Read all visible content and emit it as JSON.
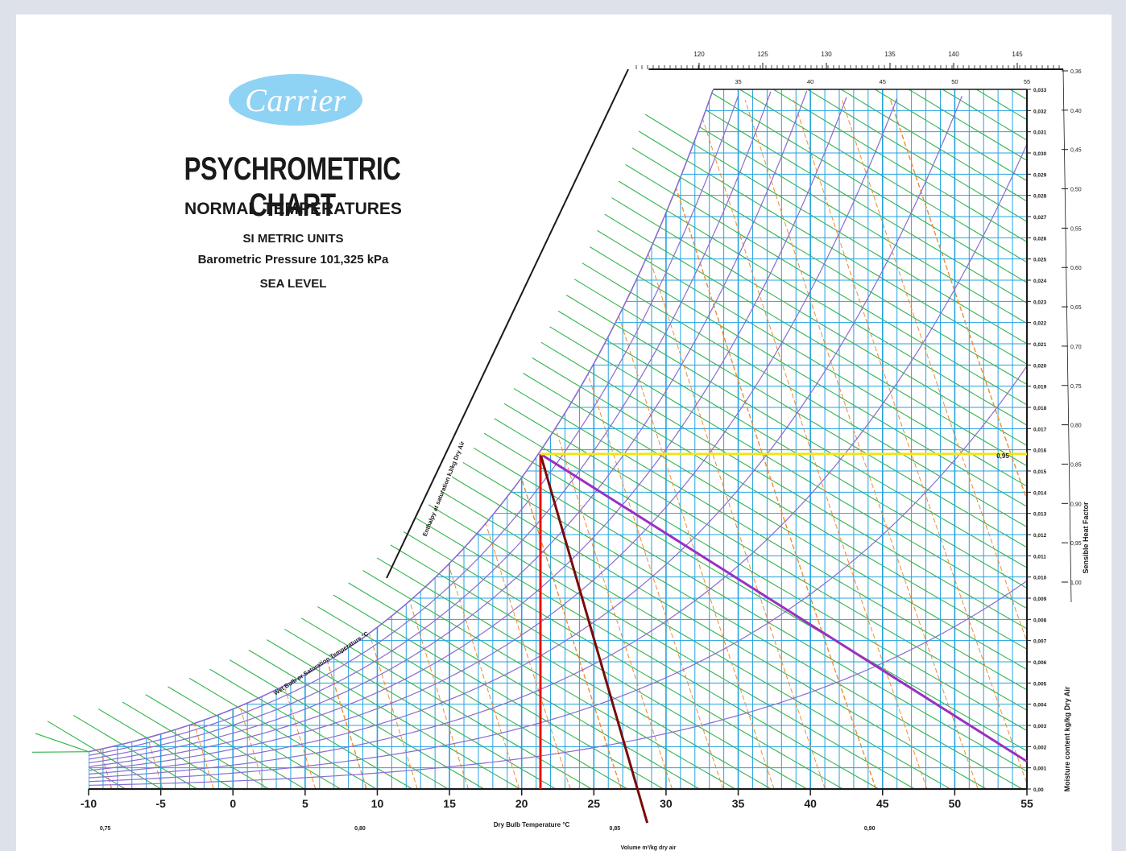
{
  "logo": {
    "text": "Carrier"
  },
  "header": {
    "title": "PSYCHROMETRIC CHART",
    "subtitle": "NORMAL TEMPERATURES",
    "units": "SI METRIC UNITS",
    "pressure": "Barometric Pressure 101,325 kPa",
    "level": "SEA LEVEL"
  },
  "chart_data": {
    "type": "line",
    "title": "PSYCHROMETRIC CHART",
    "xlabel": "Dry Bulb Temperature  °C",
    "ylabel": "Moisture content  kg/kg Dry Air",
    "y2label": "Sensible Heat Factor",
    "enthalpy_label": "Enthalpy at saturation  kJ/kg Dry Air",
    "wetbulb_label": "Wet Bulb or Saturation Temperature  °C",
    "volume_label": "Volume m³/kg dry air",
    "xlim": [
      -10,
      55
    ],
    "ylim": [
      0,
      0.033
    ],
    "x_ticks": [
      -10,
      -5,
      0,
      5,
      10,
      15,
      20,
      25,
      30,
      35,
      40,
      45,
      50,
      55
    ],
    "y_ticks": [
      "0,033",
      "0,032",
      "0,031",
      "0,030",
      "0,029",
      "0,028",
      "0,027",
      "0,026",
      "0,025",
      "0,024",
      "0,023",
      "0,022",
      "0,021",
      "0,020",
      "0,019",
      "0,018",
      "0,017",
      "0,016",
      "0,015",
      "0,014",
      "0,013",
      "0,012",
      "0,011",
      "0,010",
      "0,009",
      "0,008",
      "0,007",
      "0,006",
      "0,005",
      "0,004",
      "0,003",
      "0,002",
      "0,001",
      "0,00"
    ],
    "shf_ticks": [
      "0,36",
      "0,40",
      "0,45",
      "0,50",
      "0,55",
      "0,60",
      "0,65",
      "0,70",
      "0,75",
      "0,80",
      "0,85",
      "0,90",
      "0,95",
      "1,00"
    ],
    "top_enthalpy_ticks": [
      "120",
      "125",
      "130",
      "135",
      "140",
      "145"
    ],
    "top_db_ticks": [
      "35",
      "40",
      "45",
      "50",
      "55"
    ],
    "volume_ticks": [
      "0,75",
      "0,80",
      "0,85",
      "0,90"
    ],
    "marked_state": {
      "dry_bulb": 21.3,
      "moisture": 0.0158,
      "shf_readout": "0,95"
    },
    "process_lines": [
      {
        "name": "",
        "color": "#ee1111",
        "to": [
          21.3,
          0.0
        ]
      },
      {
        "name": "",
        "color": "#7a0a0a",
        "to": [
          28.7,
          -0.0016
        ]
      },
      {
        "name": "",
        "color": "#9b2fc0",
        "to": [
          55.0,
          0.0013
        ]
      },
      {
        "name": "",
        "color": "#f2e416",
        "to": [
          55.0,
          0.0158
        ]
      }
    ],
    "grid": true,
    "colors": {
      "grid": "#23a3de",
      "saturation_rh": "#8a6bd1",
      "enthalpy": "#32b54b",
      "volume": "#f08c32",
      "axis": "#1a1a1a"
    }
  }
}
